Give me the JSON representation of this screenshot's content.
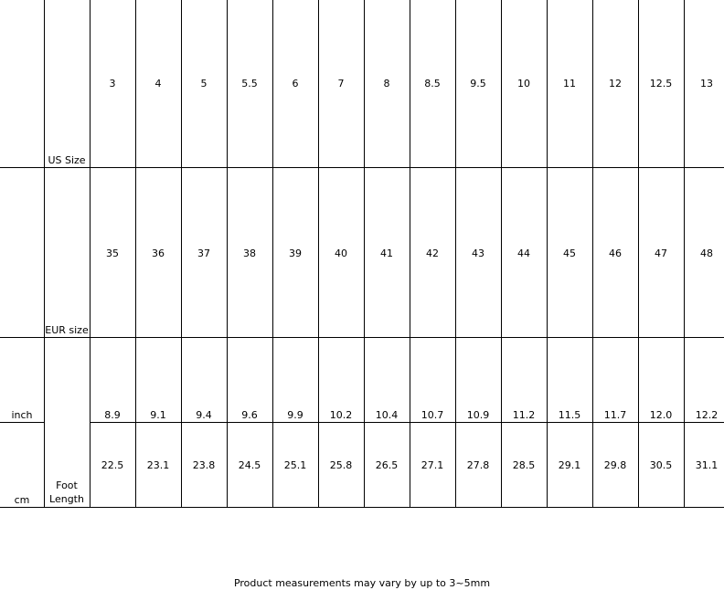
{
  "table": {
    "row_labels": {
      "us_size": "US Size",
      "eur_size": "EUR size",
      "inch": "inch",
      "cm": "cm",
      "foot_length": "Foot Length"
    },
    "us_size": [
      "3",
      "4",
      "5",
      "5.5",
      "6",
      "7",
      "8",
      "8.5",
      "9.5",
      "10",
      "11",
      "12",
      "12.5",
      "13"
    ],
    "eur_size": [
      "35",
      "36",
      "37",
      "38",
      "39",
      "40",
      "41",
      "42",
      "43",
      "44",
      "45",
      "46",
      "47",
      "48"
    ],
    "inch": [
      "8.9",
      "9.1",
      "9.4",
      "9.6",
      "9.9",
      "10.2",
      "10.4",
      "10.7",
      "10.9",
      "11.2",
      "11.5",
      "11.7",
      "12.0",
      "12.2"
    ],
    "cm": [
      "22.5",
      "23.1",
      "23.8",
      "24.5",
      "25.1",
      "25.8",
      "26.5",
      "27.1",
      "27.8",
      "28.5",
      "29.1",
      "29.8",
      "30.5",
      "31.1"
    ]
  },
  "note": "Product measurements may vary by up to 3~5mm"
}
